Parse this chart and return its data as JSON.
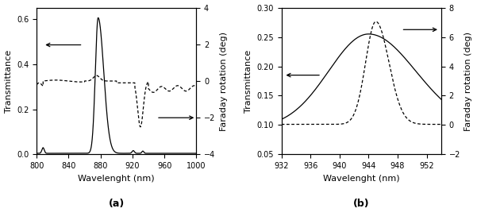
{
  "panel_a": {
    "xlim": [
      800,
      1000
    ],
    "xticks": [
      800,
      840,
      880,
      920,
      960,
      1000
    ],
    "xlabel": "Wavelenght (nm)",
    "ylabel_left": "Transmittance",
    "ylabel_right": "Faraday rotation (deg)",
    "ylim_left": [
      0,
      0.65
    ],
    "ylim_right": [
      -4,
      4
    ],
    "yticks_left": [
      0.0,
      0.2,
      0.4,
      0.6
    ],
    "yticks_right": [
      -4,
      -2,
      0,
      2,
      4
    ],
    "label": "(a)"
  },
  "panel_b": {
    "xlim": [
      932,
      954
    ],
    "xticks": [
      932,
      936,
      940,
      944,
      948,
      952
    ],
    "xlabel": "Wavelenght (nm)",
    "ylabel_left": "Transmittance",
    "ylabel_right": "Faraday rotation (deg)",
    "ylim_left": [
      0.05,
      0.3
    ],
    "ylim_right": [
      -2,
      8
    ],
    "yticks_left": [
      0.05,
      0.1,
      0.15,
      0.2,
      0.25,
      0.3
    ],
    "yticks_right": [
      -2,
      0,
      2,
      4,
      6,
      8
    ],
    "label": "(b)"
  },
  "line_color": "#000000",
  "bg_color": "#ffffff",
  "fontsize": 8,
  "label_fontsize": 9
}
